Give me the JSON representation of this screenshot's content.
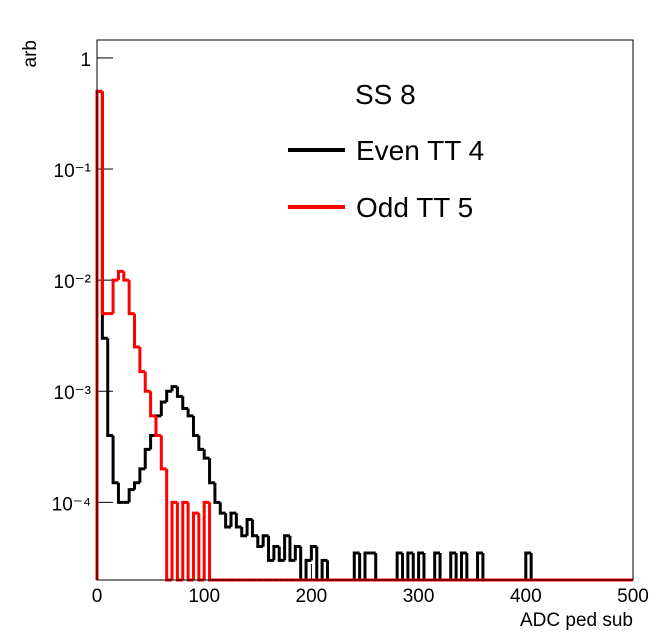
{
  "chart_data": {
    "type": "histogram",
    "xlabel": "ADC ped sub",
    "ylabel": "arb",
    "legend_title": "SS 8",
    "log_y": true,
    "xlim": [
      0,
      500
    ],
    "ylim": [
      2e-05,
      1.45
    ],
    "xticks": [
      0,
      100,
      200,
      300,
      400,
      500
    ],
    "yticks": [
      {
        "value": 0.0001,
        "label": "10⁻⁴"
      },
      {
        "value": 0.001,
        "label": "10⁻³"
      },
      {
        "value": 0.01,
        "label": "10⁻²"
      },
      {
        "value": 0.1,
        "label": "10⁻¹"
      },
      1
    ],
    "bins": [
      0,
      5,
      10,
      15,
      20,
      25,
      30,
      35,
      40,
      45,
      50,
      55,
      60,
      65,
      70,
      75,
      80,
      85,
      90,
      95,
      100,
      105,
      110,
      115,
      120,
      125,
      130,
      135,
      140,
      145,
      150,
      155,
      160,
      165,
      170,
      175,
      180,
      185,
      190,
      195,
      200,
      205,
      210,
      215,
      220,
      225,
      230,
      235,
      240,
      245,
      250,
      255,
      260,
      265,
      270,
      275,
      280,
      285,
      290,
      295,
      300,
      305,
      310,
      315,
      320,
      325,
      330,
      335,
      340,
      345,
      350,
      355,
      360,
      365,
      370,
      375,
      380,
      385,
      390,
      395,
      400,
      405,
      410,
      415,
      420,
      425,
      430,
      435,
      440,
      445,
      450,
      455,
      460,
      465,
      470,
      475,
      480,
      485,
      490,
      495,
      500
    ],
    "series": [
      {
        "name": "Even TT 4",
        "color": "#000000",
        "values": [
          0.5,
          0.003,
          0.0004,
          0.00015,
          0.0001,
          0.0001,
          0.00013,
          0.00015,
          0.0002,
          0.0003,
          0.0004,
          0.0006,
          0.0008,
          0.001,
          0.0011,
          0.0009,
          0.0007,
          0.0006,
          0.0004,
          0.0003,
          0.00025,
          0.00015,
          0.0001,
          8e-05,
          6e-05,
          8e-05,
          6e-05,
          5e-05,
          7e-05,
          5e-05,
          4e-05,
          5e-05,
          3e-05,
          4e-05,
          3e-05,
          5e-05,
          3e-05,
          4e-05,
          0,
          3e-05,
          4e-05,
          0,
          3e-05,
          0,
          0,
          0,
          0,
          0,
          3.5e-05,
          0,
          3.5e-05,
          3.5e-05,
          0,
          0,
          0,
          0,
          3.5e-05,
          0,
          3.5e-05,
          0,
          3.5e-05,
          0,
          0,
          3.5e-05,
          0,
          0,
          3.5e-05,
          0,
          3.5e-05,
          0,
          0,
          3.5e-05,
          0,
          0,
          0,
          0,
          0,
          0,
          0,
          0,
          3.5e-05,
          0,
          0,
          0,
          0,
          0,
          0,
          0,
          0,
          0,
          0,
          0,
          0,
          0,
          0,
          0,
          0,
          0,
          0,
          0
        ]
      },
      {
        "name": "Odd TT 5",
        "color": "#ff0000",
        "values": [
          0.5,
          0.005,
          0.005,
          0.01,
          0.012,
          0.01,
          0.005,
          0.0025,
          0.0015,
          0.001,
          0.0006,
          0.0004,
          0.0002,
          0,
          0.0001,
          0,
          0.0001,
          0,
          8e-05,
          0,
          0.0001,
          0,
          0,
          0,
          0,
          0,
          0,
          0,
          0,
          0,
          0,
          0,
          0,
          0,
          0,
          0,
          0,
          0,
          0,
          0,
          0,
          0,
          0,
          0,
          0,
          0,
          0,
          0,
          0,
          0,
          0,
          0,
          0,
          0,
          0,
          0,
          0,
          0,
          0,
          0,
          0,
          0,
          0,
          0,
          0,
          0,
          0,
          0,
          0,
          0,
          0,
          0,
          0,
          0,
          0,
          0,
          0,
          0,
          0,
          0,
          0,
          0,
          0,
          0,
          0,
          0,
          0,
          0,
          0,
          0,
          0,
          0,
          0,
          0,
          0,
          0,
          0,
          0,
          0,
          0
        ]
      }
    ]
  }
}
